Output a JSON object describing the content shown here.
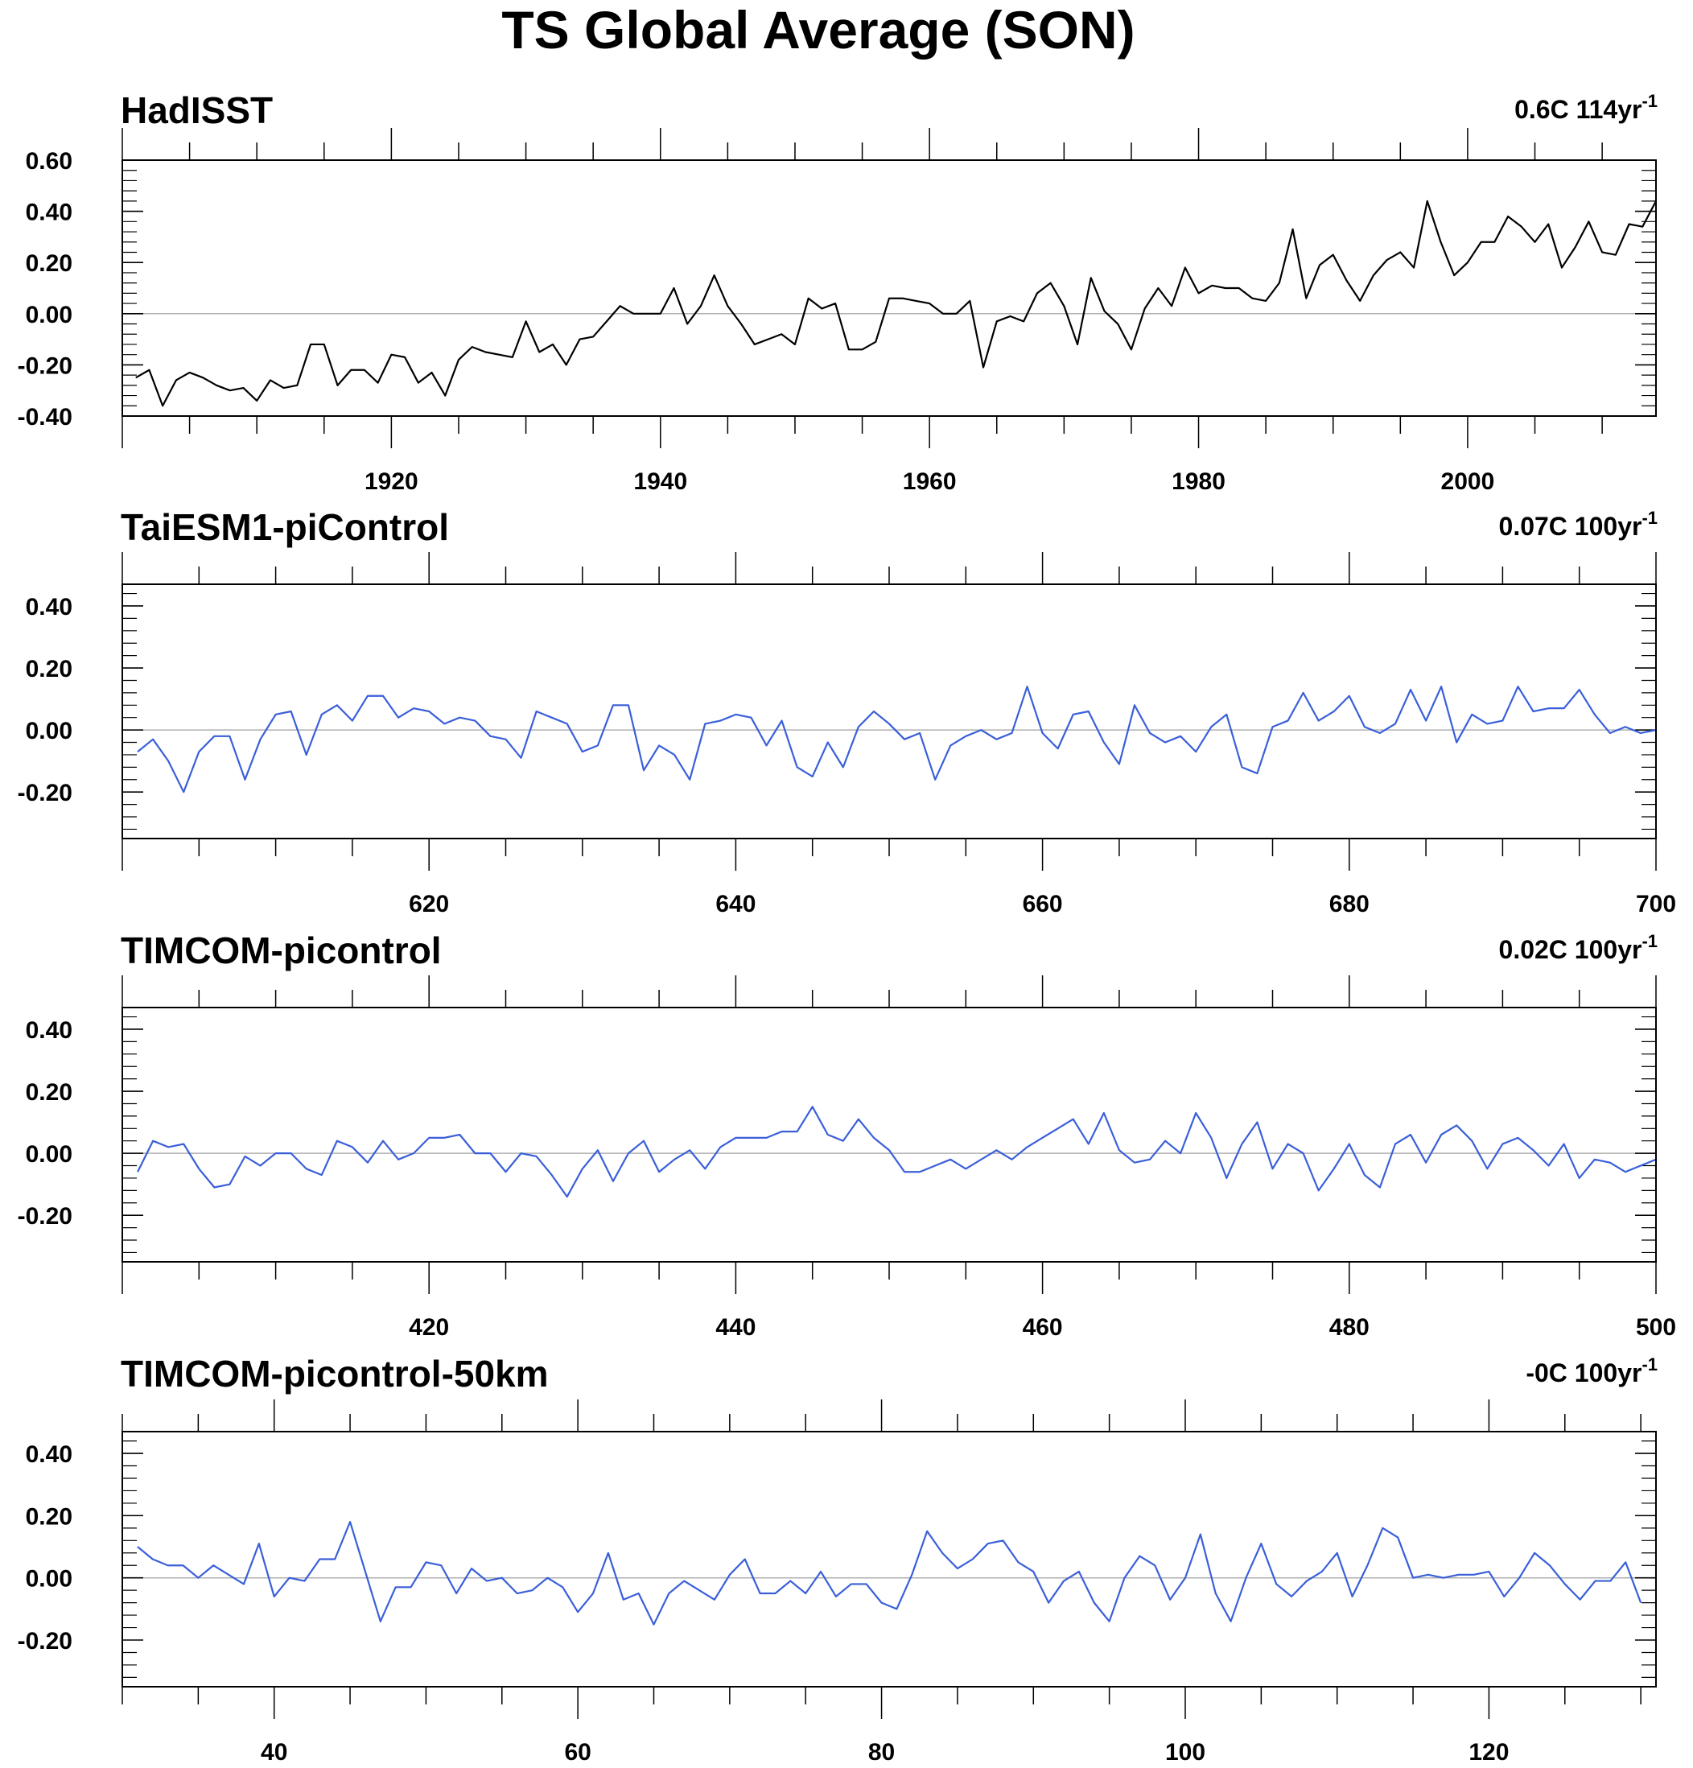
{
  "title": "TS Global Average (SON)",
  "colors": {
    "observed": "#000000",
    "model": "#3a5fd9",
    "zero_line": "#b0b0b0",
    "frame": "#000000"
  },
  "chart_data": [
    {
      "type": "line",
      "title": "HadISST",
      "trend": {
        "value": "0.6C 114yr",
        "exponent": "-1"
      },
      "x_start": 1901,
      "x_step": 1,
      "xlim": [
        1900,
        2014
      ],
      "ylim": [
        -0.4,
        0.6
      ],
      "y_ticks": [
        {
          "value": 0.6,
          "label": "0.60"
        },
        {
          "value": 0.4,
          "label": "0.40"
        },
        {
          "value": 0.2,
          "label": "0.20"
        },
        {
          "value": 0.0,
          "label": "0.00"
        },
        {
          "value": -0.2,
          "label": "-0.20"
        },
        {
          "value": -0.4,
          "label": "-0.40"
        }
      ],
      "x_ticks": [
        {
          "value": 1920,
          "label": "1920"
        },
        {
          "value": 1940,
          "label": "1940"
        },
        {
          "value": 1960,
          "label": "1960"
        },
        {
          "value": 1980,
          "label": "1980"
        },
        {
          "value": 2000,
          "label": "2000"
        }
      ],
      "series": [
        {
          "color_key": "observed",
          "values": [
            -0.25,
            -0.22,
            -0.36,
            -0.26,
            -0.23,
            -0.25,
            -0.28,
            -0.3,
            -0.29,
            -0.34,
            -0.26,
            -0.29,
            -0.28,
            -0.12,
            -0.12,
            -0.28,
            -0.22,
            -0.22,
            -0.27,
            -0.16,
            -0.17,
            -0.27,
            -0.23,
            -0.32,
            -0.18,
            -0.13,
            -0.15,
            -0.16,
            -0.17,
            -0.03,
            -0.15,
            -0.12,
            -0.2,
            -0.1,
            -0.09,
            -0.03,
            0.03,
            0.0,
            0.0,
            0.0,
            0.1,
            -0.04,
            0.03,
            0.15,
            0.03,
            -0.04,
            -0.12,
            -0.1,
            -0.08,
            -0.12,
            0.06,
            0.02,
            0.04,
            -0.14,
            -0.14,
            -0.11,
            0.06,
            0.06,
            0.05,
            0.04,
            0.0,
            0.0,
            0.05,
            -0.21,
            -0.03,
            -0.01,
            -0.03,
            0.08,
            0.12,
            0.03,
            -0.12,
            0.14,
            0.01,
            -0.04,
            -0.14,
            0.02,
            0.1,
            0.03,
            0.18,
            0.08,
            0.11,
            0.1,
            0.1,
            0.06,
            0.05,
            0.12,
            0.33,
            0.06,
            0.19,
            0.23,
            0.13,
            0.05,
            0.15,
            0.21,
            0.24,
            0.18,
            0.44,
            0.28,
            0.15,
            0.2,
            0.28,
            0.28,
            0.38,
            0.34,
            0.28,
            0.35,
            0.18,
            0.26,
            0.36,
            0.24,
            0.23,
            0.35,
            0.34,
            0.44
          ]
        }
      ]
    },
    {
      "type": "line",
      "title": "TaiESM1-piControl",
      "trend": {
        "value": "0.07C 100yr",
        "exponent": "-1"
      },
      "x_start": 601,
      "x_step": 1,
      "xlim": [
        600,
        700
      ],
      "ylim": [
        -0.35,
        0.47
      ],
      "y_ticks": [
        {
          "value": 0.4,
          "label": "0.40"
        },
        {
          "value": 0.2,
          "label": "0.20"
        },
        {
          "value": 0.0,
          "label": "0.00"
        },
        {
          "value": -0.2,
          "label": "-0.20"
        }
      ],
      "x_ticks": [
        {
          "value": 620,
          "label": "620"
        },
        {
          "value": 640,
          "label": "640"
        },
        {
          "value": 660,
          "label": "660"
        },
        {
          "value": 680,
          "label": "680"
        },
        {
          "value": 700,
          "label": "700"
        }
      ],
      "series": [
        {
          "color_key": "model",
          "values": [
            -0.07,
            -0.03,
            -0.1,
            -0.2,
            -0.07,
            -0.02,
            -0.02,
            -0.16,
            -0.03,
            0.05,
            0.06,
            -0.08,
            0.05,
            0.08,
            0.03,
            0.11,
            0.11,
            0.04,
            0.07,
            0.06,
            0.02,
            0.04,
            0.03,
            -0.02,
            -0.03,
            -0.09,
            0.06,
            0.04,
            0.02,
            -0.07,
            -0.05,
            0.08,
            0.08,
            -0.13,
            -0.05,
            -0.08,
            -0.16,
            0.02,
            0.03,
            0.05,
            0.04,
            -0.05,
            0.03,
            -0.12,
            -0.15,
            -0.04,
            -0.12,
            0.01,
            0.06,
            0.02,
            -0.03,
            -0.01,
            -0.16,
            -0.05,
            -0.02,
            0.0,
            -0.03,
            -0.01,
            0.14,
            -0.01,
            -0.06,
            0.05,
            0.06,
            -0.04,
            -0.11,
            0.08,
            -0.01,
            -0.04,
            -0.02,
            -0.07,
            0.01,
            0.05,
            -0.12,
            -0.14,
            0.01,
            0.03,
            0.12,
            0.03,
            0.06,
            0.11,
            0.01,
            -0.01,
            0.02,
            0.13,
            0.03,
            0.14,
            -0.04,
            0.05,
            0.02,
            0.03,
            0.14,
            0.06,
            0.07,
            0.07,
            0.13,
            0.05,
            -0.01,
            0.01,
            -0.01,
            0.0
          ]
        }
      ]
    },
    {
      "type": "line",
      "title": "TIMCOM-picontrol",
      "trend": {
        "value": "0.02C 100yr",
        "exponent": "-1"
      },
      "x_start": 401,
      "x_step": 1,
      "xlim": [
        400,
        500
      ],
      "ylim": [
        -0.35,
        0.47
      ],
      "y_ticks": [
        {
          "value": 0.4,
          "label": "0.40"
        },
        {
          "value": 0.2,
          "label": "0.20"
        },
        {
          "value": 0.0,
          "label": "0.00"
        },
        {
          "value": -0.2,
          "label": "-0.20"
        }
      ],
      "x_ticks": [
        {
          "value": 420,
          "label": "420"
        },
        {
          "value": 440,
          "label": "440"
        },
        {
          "value": 460,
          "label": "460"
        },
        {
          "value": 480,
          "label": "480"
        },
        {
          "value": 500,
          "label": "500"
        }
      ],
      "series": [
        {
          "color_key": "model",
          "values": [
            -0.06,
            0.04,
            0.02,
            0.03,
            -0.05,
            -0.11,
            -0.1,
            -0.01,
            -0.04,
            0.0,
            0.0,
            -0.05,
            -0.07,
            0.04,
            0.02,
            -0.03,
            0.04,
            -0.02,
            0.0,
            0.05,
            0.05,
            0.06,
            0.0,
            0.0,
            -0.06,
            0.0,
            -0.01,
            -0.07,
            -0.14,
            -0.05,
            0.01,
            -0.09,
            0.0,
            0.04,
            -0.06,
            -0.02,
            0.01,
            -0.05,
            0.02,
            0.05,
            0.05,
            0.05,
            0.07,
            0.07,
            0.15,
            0.06,
            0.04,
            0.11,
            0.05,
            0.01,
            -0.06,
            -0.06,
            -0.04,
            -0.02,
            -0.05,
            -0.02,
            0.01,
            -0.02,
            0.02,
            0.05,
            0.08,
            0.11,
            0.03,
            0.13,
            0.01,
            -0.03,
            -0.02,
            0.04,
            0.0,
            0.13,
            0.05,
            -0.08,
            0.03,
            0.1,
            -0.05,
            0.03,
            0.0,
            -0.12,
            -0.05,
            0.03,
            -0.07,
            -0.11,
            0.03,
            0.06,
            -0.03,
            0.06,
            0.09,
            0.04,
            -0.05,
            0.03,
            0.05,
            0.01,
            -0.04,
            0.03,
            -0.08,
            -0.02,
            -0.03,
            -0.06,
            -0.04,
            -0.02
          ]
        }
      ]
    },
    {
      "type": "line",
      "title": "TIMCOM-picontrol-50km",
      "trend": {
        "value": "-0C 100yr",
        "exponent": "-1"
      },
      "x_start": 31,
      "x_step": 1,
      "xlim": [
        30,
        131
      ],
      "ylim": [
        -0.35,
        0.47
      ],
      "y_ticks": [
        {
          "value": 0.4,
          "label": "0.40"
        },
        {
          "value": 0.2,
          "label": "0.20"
        },
        {
          "value": 0.0,
          "label": "0.00"
        },
        {
          "value": -0.2,
          "label": "-0.20"
        }
      ],
      "x_ticks": [
        {
          "value": 40,
          "label": "40"
        },
        {
          "value": 60,
          "label": "60"
        },
        {
          "value": 80,
          "label": "80"
        },
        {
          "value": 100,
          "label": "100"
        },
        {
          "value": 120,
          "label": "120"
        }
      ],
      "series": [
        {
          "color_key": "model",
          "values": [
            0.1,
            0.06,
            0.04,
            0.04,
            0.0,
            0.04,
            0.01,
            -0.02,
            0.11,
            -0.06,
            0.0,
            -0.01,
            0.06,
            0.06,
            0.18,
            0.02,
            -0.14,
            -0.03,
            -0.03,
            0.05,
            0.04,
            -0.05,
            0.03,
            -0.01,
            0.0,
            -0.05,
            -0.04,
            0.0,
            -0.03,
            -0.11,
            -0.05,
            0.08,
            -0.07,
            -0.05,
            -0.15,
            -0.05,
            -0.01,
            -0.04,
            -0.07,
            0.01,
            0.06,
            -0.05,
            -0.05,
            -0.01,
            -0.05,
            0.02,
            -0.06,
            -0.02,
            -0.02,
            -0.08,
            -0.1,
            0.01,
            0.15,
            0.08,
            0.03,
            0.06,
            0.11,
            0.12,
            0.05,
            0.02,
            -0.08,
            -0.01,
            0.02,
            -0.08,
            -0.14,
            0.0,
            0.07,
            0.04,
            -0.07,
            0.0,
            0.14,
            -0.05,
            -0.14,
            0.0,
            0.11,
            -0.02,
            -0.06,
            -0.01,
            0.02,
            0.08,
            -0.06,
            0.04,
            0.16,
            0.13,
            0.0,
            0.01,
            0.0,
            0.01,
            0.01,
            0.02,
            -0.06,
            0.0,
            0.08,
            0.04,
            -0.02,
            -0.07,
            -0.01,
            -0.01,
            0.05,
            -0.08
          ]
        }
      ]
    }
  ]
}
